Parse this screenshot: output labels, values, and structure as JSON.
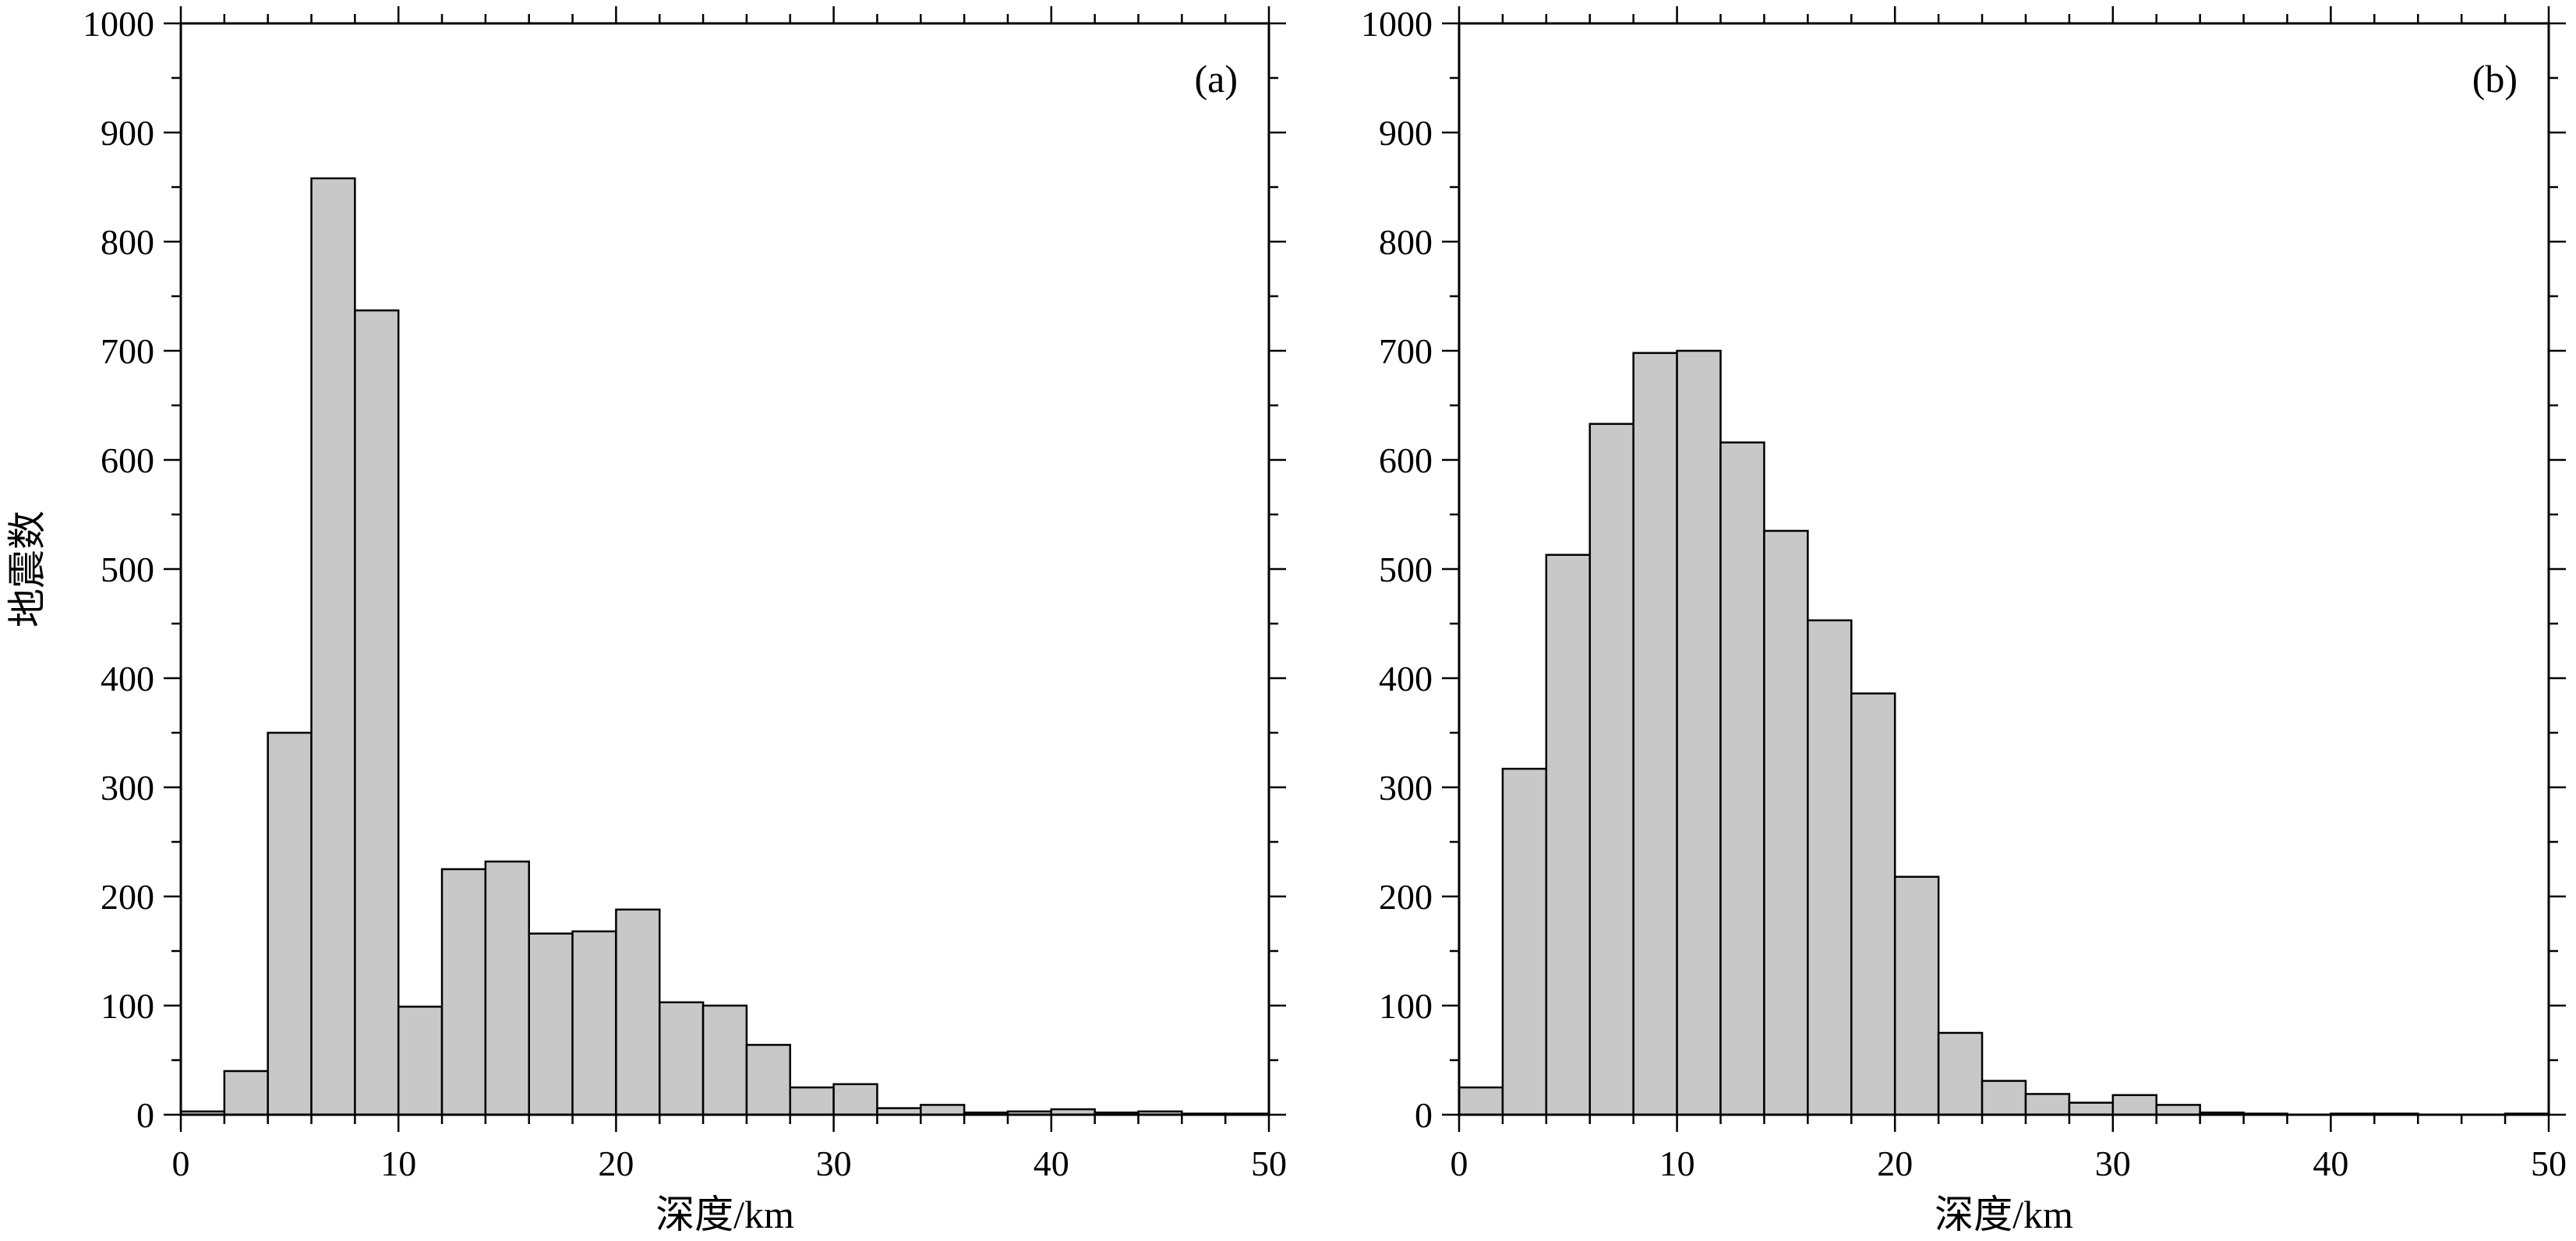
{
  "chart_data": [
    {
      "type": "bar",
      "panel_label": "(a)",
      "xlabel": "深度/km",
      "ylabel": "地震数",
      "xlim": [
        0,
        50
      ],
      "ylim": [
        0,
        1000
      ],
      "xticks": [
        0,
        10,
        20,
        30,
        40,
        50
      ],
      "yticks": [
        0,
        100,
        200,
        300,
        400,
        500,
        600,
        700,
        800,
        900,
        1000
      ],
      "bin_width": 2,
      "bin_edges_start": [
        0,
        2,
        4,
        6,
        8,
        10,
        12,
        14,
        16,
        18,
        20,
        22,
        24,
        26,
        28,
        30,
        32,
        34,
        36,
        38,
        40,
        42,
        44,
        46,
        48
      ],
      "values": [
        3,
        40,
        350,
        858,
        737,
        99,
        225,
        232,
        166,
        168,
        188,
        103,
        100,
        64,
        25,
        28,
        6,
        9,
        2,
        3,
        5,
        2,
        3,
        1,
        1
      ],
      "bar_color": "#c8c8c8",
      "grid": false
    },
    {
      "type": "bar",
      "panel_label": "(b)",
      "xlabel": "深度/km",
      "ylabel": "",
      "xlim": [
        0,
        50
      ],
      "ylim": [
        0,
        1000
      ],
      "xticks": [
        0,
        10,
        20,
        30,
        40,
        50
      ],
      "yticks": [
        0,
        100,
        200,
        300,
        400,
        500,
        600,
        700,
        800,
        900,
        1000
      ],
      "bin_width": 2,
      "bin_edges_start": [
        0,
        2,
        4,
        6,
        8,
        10,
        12,
        14,
        16,
        18,
        20,
        22,
        24,
        26,
        28,
        30,
        32,
        34,
        36,
        38,
        40,
        42,
        44,
        46,
        48
      ],
      "values": [
        25,
        317,
        513,
        633,
        698,
        700,
        616,
        535,
        453,
        386,
        218,
        75,
        31,
        19,
        11,
        18,
        9,
        2,
        1,
        0,
        1,
        1,
        0,
        0,
        1
      ],
      "bar_color": "#c8c8c8",
      "grid": false
    }
  ]
}
